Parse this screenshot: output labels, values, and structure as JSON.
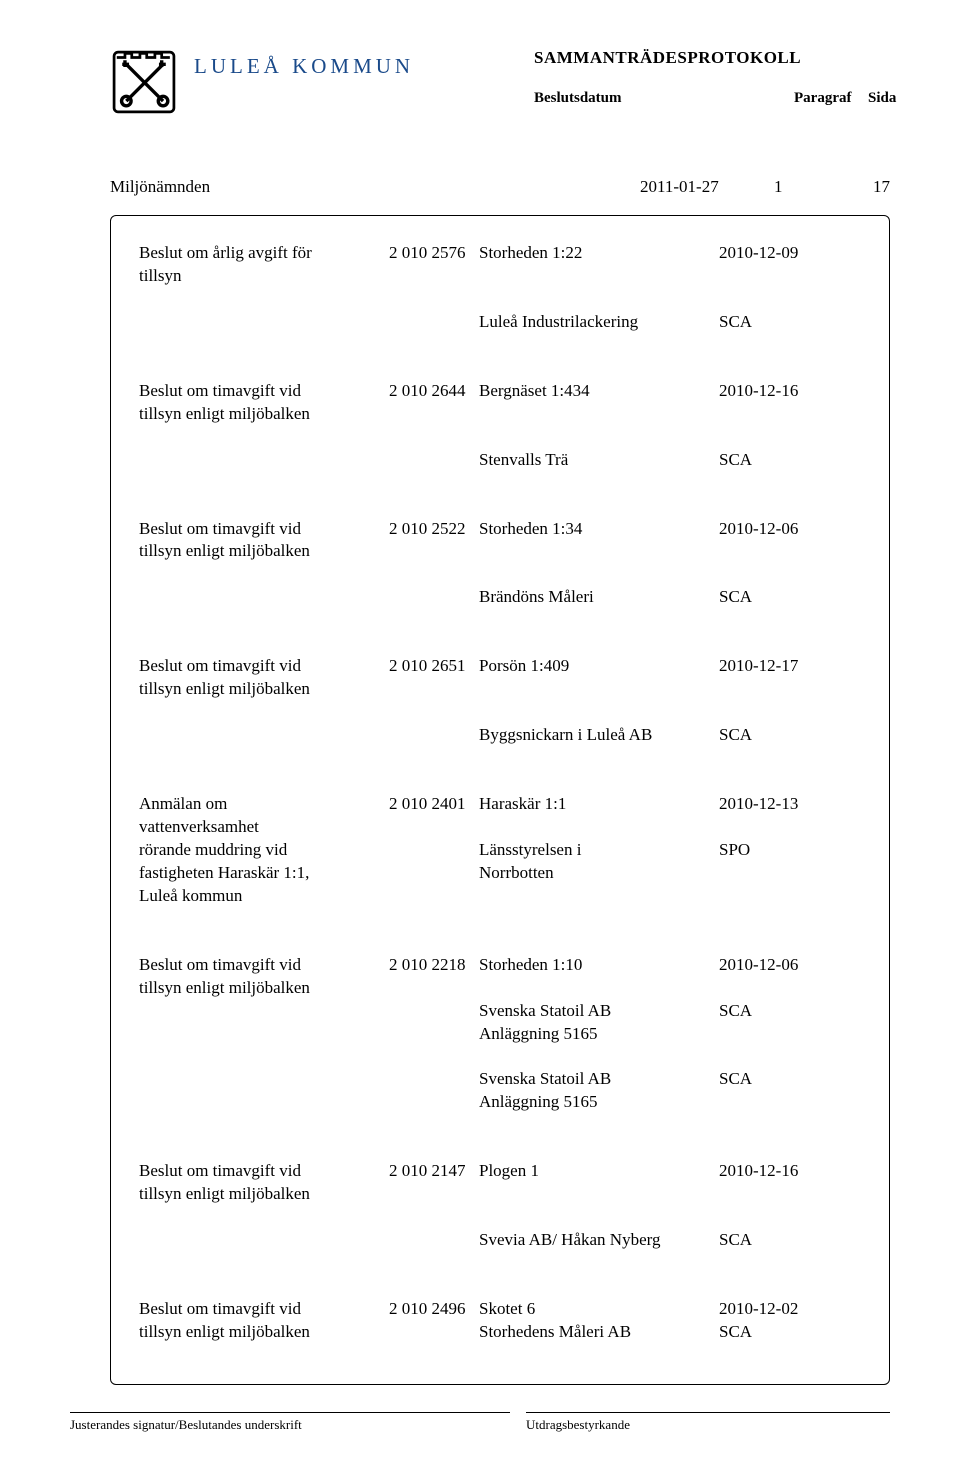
{
  "header": {
    "org_name": "LULEÅ KOMMUN",
    "protocol_title": "SAMMANTRÄDESPROTOKOLL",
    "col_date": "Beslutsdatum",
    "col_para": "Paragraf",
    "col_page": "Sida"
  },
  "meta": {
    "board": "Miljönämnden",
    "date": "2011-01-27",
    "paragraph": "1",
    "page": "17"
  },
  "entries": [
    {
      "desc_l1": "Beslut om årlig avgift för",
      "desc_l2": "tillsyn",
      "code": "2 010 2576",
      "prop": "Storheden 1:22",
      "date": "2010-12-09",
      "party": "Luleå Industrilackering",
      "tag": "SCA"
    },
    {
      "desc_l1": "Beslut om timavgift vid",
      "desc_l2": "tillsyn enligt miljöbalken",
      "code": "2 010 2644",
      "prop": "Bergnäset 1:434",
      "date": "2010-12-16",
      "party": "Stenvalls Trä",
      "tag": "SCA"
    },
    {
      "desc_l1": "Beslut om timavgift vid",
      "desc_l2": "tillsyn enligt miljöbalken",
      "code": "2 010 2522",
      "prop": "Storheden 1:34",
      "date": "2010-12-06",
      "party": "Brändöns Måleri",
      "tag": "SCA"
    },
    {
      "desc_l1": "Beslut om timavgift vid",
      "desc_l2": "tillsyn enligt miljöbalken",
      "code": "2 010 2651",
      "prop": "Porsön 1:409",
      "date": "2010-12-17",
      "party": "Byggsnickarn i Luleå AB",
      "tag": "SCA"
    },
    {
      "desc_l1": "Anmälan om",
      "desc_l2": "vattenverksamhet",
      "desc_l3": "rörande muddring vid",
      "desc_l4": "fastigheten Haraskär 1:1,",
      "desc_l5": "Luleå kommun",
      "code": "2 010 2401",
      "prop": "Haraskär 1:1",
      "date": "2010-12-13",
      "party_l1": "Länsstyrelsen i",
      "party_l2": "Norrbotten",
      "tag": "SPO"
    },
    {
      "desc_l1": "Beslut om timavgift vid",
      "desc_l2": "tillsyn enligt miljöbalken",
      "code": "2 010 2218",
      "prop": "Storheden 1:10",
      "date": "2010-12-06",
      "party_l1": "Svenska Statoil AB",
      "party_l2": "Anläggning 5165",
      "tag": "SCA"
    },
    {
      "desc_l1": "Beslut om timavgift vid",
      "desc_l2": "tillsyn enligt miljöbalken",
      "code": "2 010 2147",
      "prop": "Plogen 1",
      "date": "2010-12-16",
      "party": "Svevia AB/ Håkan Nyberg",
      "tag": "SCA"
    },
    {
      "desc_l1": "Beslut om timavgift vid",
      "desc_l2": "tillsyn enligt miljöbalken",
      "code": "2 010 2496",
      "prop": "Skotet 6",
      "date": "2010-12-02",
      "party": "Storhedens Måleri AB",
      "tag": "SCA",
      "compact": true
    }
  ],
  "footer": {
    "left": "Justerandes signatur/Beslutandes underskrift",
    "right": "Utdragsbestyrkande"
  }
}
